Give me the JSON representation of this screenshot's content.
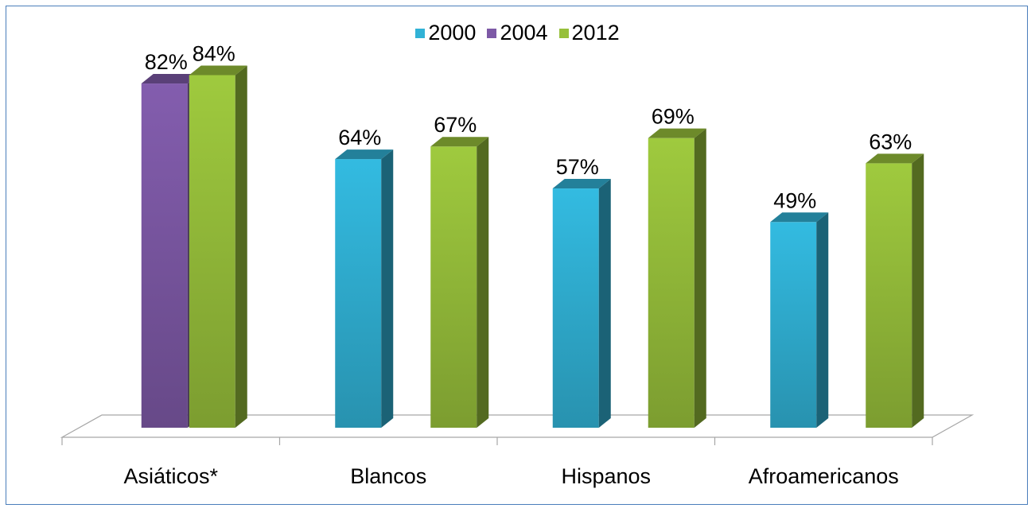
{
  "chart_data": {
    "type": "bar",
    "categories": [
      "Asiáticos*",
      "Blancos",
      "Hispanos",
      "Afroamericanos"
    ],
    "series": [
      {
        "name": "2000",
        "color": "#31b2d6",
        "values": [
          null,
          64,
          57,
          49
        ],
        "labels": [
          null,
          "64%",
          "57%",
          "49%"
        ]
      },
      {
        "name": "2004",
        "color": "#7d59a6",
        "values": [
          82,
          null,
          null,
          null
        ],
        "labels": [
          "82%",
          null,
          null,
          null
        ]
      },
      {
        "name": "2012",
        "color": "#97c03b",
        "values": [
          84,
          67,
          69,
          63
        ],
        "labels": [
          "84%",
          "67%",
          "69%",
          "63%"
        ]
      }
    ],
    "ylim": [
      0,
      100
    ],
    "legend_position": "top-center",
    "grid": false,
    "style": "3d-column"
  }
}
